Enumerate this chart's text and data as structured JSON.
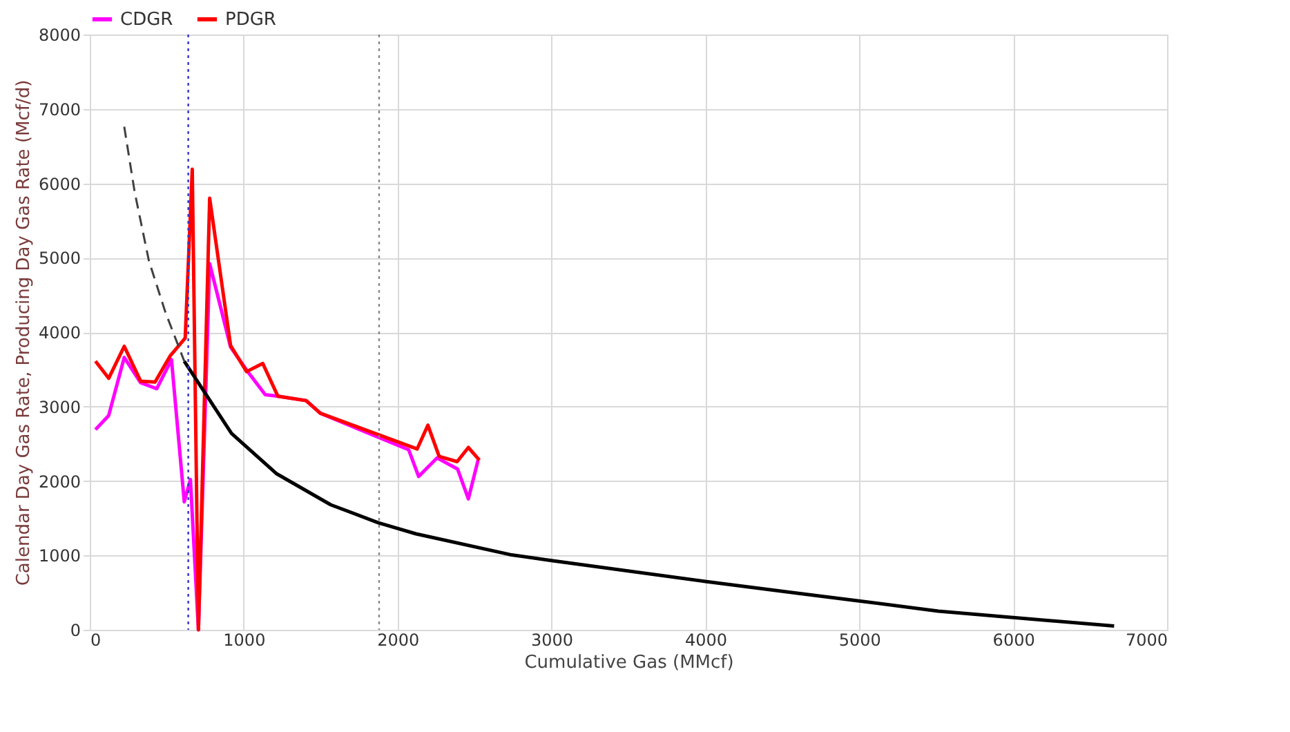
{
  "chart_data": {
    "type": "line",
    "xlabel": "Cumulative Gas (MMcf)",
    "ylabel": "Calendar Day Gas Rate, Producing Day Gas Rate (Mcf/d)",
    "xlim": [
      0,
      7000
    ],
    "xticks": [
      0,
      1000,
      2000,
      3000,
      4000,
      5000,
      6000,
      7000
    ],
    "ylim": [
      0,
      8000
    ],
    "yticks": [
      0,
      1000,
      2000,
      3000,
      4000,
      5000,
      6000,
      7000,
      8000
    ],
    "grid": true,
    "legend": "top left",
    "marker": "none",
    "series": [
      {
        "name": "CDGR",
        "color": "#ff00ff",
        "x": [
          37,
          123,
          224,
          331,
          435,
          531,
          614,
          654,
          706,
          779,
          915,
          1019,
          1140,
          1222,
          1406,
          1498,
          2072,
          2137,
          2257,
          2390,
          2460,
          2523
        ],
        "values": [
          2690,
          2880,
          3660,
          3320,
          3240,
          3630,
          1720,
          2020,
          0,
          4920,
          3800,
          3490,
          3160,
          3140,
          3080,
          2910,
          2420,
          2060,
          2310,
          2160,
          1760,
          2280
        ]
      },
      {
        "name": "PDGR",
        "color": "#ff0000",
        "x": [
          37,
          123,
          224,
          331,
          424,
          522,
          620,
          666,
          706,
          779,
          915,
          1019,
          1124,
          1222,
          1406,
          1498,
          2127,
          2197,
          2270,
          2387,
          2460,
          2532
        ],
        "values": [
          3610,
          3380,
          3810,
          3340,
          3330,
          3680,
          3920,
          6190,
          0,
          5800,
          3820,
          3470,
          3580,
          3140,
          3080,
          2910,
          2430,
          2750,
          2330,
          2260,
          2450,
          2280
        ]
      },
      {
        "color": "#404040",
        "line_style": "dashed",
        "x": [
          224,
          292,
          384,
          491,
          614
        ],
        "values": [
          6760,
          5880,
          4960,
          4270,
          3610
        ]
      },
      {
        "color": "#000000",
        "line_style": "solid",
        "x": [
          614,
          921,
          1212,
          1566,
          1873,
          2119,
          2732,
          3000,
          4000,
          4606,
          4990,
          5514,
          5974,
          6656
        ],
        "values": [
          3610,
          2640,
          2100,
          1680,
          1440,
          1290,
          1010,
          930,
          650,
          490,
          390,
          250,
          170,
          50
        ]
      }
    ],
    "ref_lines": [
      {
        "axis": "x",
        "value": 640,
        "color": "#3333cc",
        "line_style": "dotted"
      },
      {
        "axis": "x",
        "value": 1880,
        "color": "#888888",
        "line_style": "dotted"
      }
    ]
  }
}
